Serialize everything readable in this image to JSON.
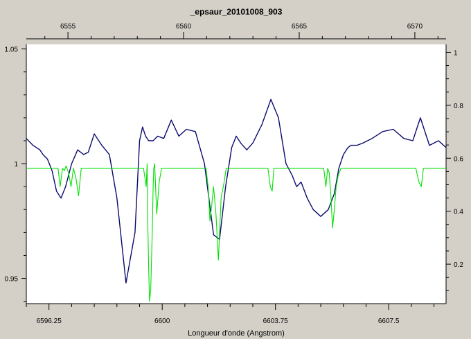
{
  "chart_data": {
    "type": "line",
    "title": "_epsaur_20101008_903",
    "xlabel": "Longueur d'onde (Angstrom)",
    "colors": {
      "background": "#d4d0c8",
      "plot_bg": "#ffffff",
      "observed": "#0a0a6e",
      "telluric": "#00e000"
    },
    "x_bottom": {
      "range": [
        6595.5,
        6609.4
      ],
      "ticks": [
        6596.25,
        6600,
        6603.75,
        6607.5
      ],
      "tick_labels": [
        "6596.25",
        "6600",
        "6603.75",
        "6607.5"
      ]
    },
    "x_top": {
      "range": [
        6553.2,
        6571.35
      ],
      "ticks": [
        6555,
        6560,
        6565,
        6570
      ],
      "tick_labels": [
        "6555",
        "6560",
        "6565",
        "6570"
      ]
    },
    "y_left": {
      "range": [
        0.939,
        1.052
      ],
      "ticks": [
        0.95,
        1,
        1.05
      ],
      "tick_labels": [
        "0.95",
        "1",
        "1.05"
      ]
    },
    "y_right": {
      "range": [
        0.051,
        1.03
      ],
      "ticks": [
        0.2,
        0.4,
        0.6,
        0.8,
        1
      ],
      "tick_labels": [
        "0.2",
        "0.4",
        "0.6",
        "0.8",
        "1"
      ]
    },
    "grid": false,
    "series": [
      {
        "axis": "left",
        "x": [
          6595.5,
          6595.72,
          6595.95,
          6596.05,
          6596.2,
          6596.35,
          6596.5,
          6596.65,
          6596.8,
          6597.0,
          6597.2,
          6597.4,
          6597.55,
          6597.75,
          6598.0,
          6598.25,
          6598.5,
          6598.8,
          6599.1,
          6599.25,
          6599.35,
          6599.45,
          6599.55,
          6599.7,
          6599.85,
          6600.05,
          6600.3,
          6600.55,
          6600.8,
          6601.1,
          6601.4,
          6601.7,
          6601.9,
          6602.1,
          6602.3,
          6602.45,
          6602.6,
          6602.8,
          6603.0,
          6603.3,
          6603.6,
          6603.85,
          6604.1,
          6604.3,
          6604.45,
          6604.6,
          6604.8,
          6605.0,
          6605.25,
          6605.5,
          6605.7,
          6605.85,
          6606.0,
          6606.15,
          6606.25,
          6606.45,
          6606.65,
          6606.95,
          6607.3,
          6607.65,
          6608.0,
          6608.3,
          6608.55,
          6608.85,
          6609.15,
          6609.4
        ],
        "y": [
          1.011,
          1.008,
          1.006,
          1.004,
          1.002,
          0.997,
          0.988,
          0.985,
          0.99,
          1.0,
          1.006,
          1.004,
          1.005,
          1.013,
          1.008,
          1.004,
          0.985,
          0.948,
          0.97,
          1.01,
          1.016,
          1.012,
          1.01,
          1.01,
          1.012,
          1.011,
          1.019,
          1.012,
          1.015,
          1.014,
          1.0,
          0.969,
          0.967,
          0.99,
          1.007,
          1.012,
          1.009,
          1.006,
          1.009,
          1.017,
          1.028,
          1.02,
          1.0,
          0.995,
          0.99,
          0.992,
          0.985,
          0.98,
          0.977,
          0.98,
          0.987,
          0.998,
          1.004,
          1.007,
          1.008,
          1.008,
          1.009,
          1.011,
          1.014,
          1.015,
          1.011,
          1.01,
          1.02,
          1.008,
          1.01,
          1.007
        ]
      },
      {
        "axis": "left",
        "x": [
          6595.5,
          6596.55,
          6596.62,
          6596.7,
          6596.76,
          6596.82,
          6596.9,
          6596.98,
          6597.06,
          6597.14,
          6597.23,
          6597.32,
          6599.38,
          6599.47,
          6599.5,
          6599.52,
          6599.55,
          6599.58,
          6599.62,
          6599.67,
          6599.7,
          6599.72,
          6599.75,
          6599.78,
          6599.82,
          6599.9,
          6599.98,
          6600.05,
          6601.45,
          6601.52,
          6601.58,
          6601.64,
          6601.7,
          6601.78,
          6601.86,
          6601.95,
          6602.05,
          6602.12,
          6603.5,
          6603.58,
          6603.64,
          6603.7,
          6603.78,
          6605.35,
          6605.42,
          6605.48,
          6605.53,
          6605.59,
          6605.64,
          6605.7,
          6605.76,
          6605.83,
          6605.92,
          6608.4,
          6608.5,
          6608.58,
          6608.65,
          6608.75,
          6609.4
        ],
        "y": [
          0.998,
          0.998,
          0.99,
          0.998,
          0.997,
          0.999,
          0.996,
          0.99,
          0.998,
          0.994,
          0.986,
          0.998,
          0.998,
          0.99,
          1.0,
          0.975,
          0.955,
          0.94,
          0.945,
          0.97,
          0.99,
          0.998,
          1.0,
          0.99,
          0.978,
          0.992,
          0.998,
          0.998,
          0.998,
          0.99,
          0.975,
          0.982,
          0.99,
          0.978,
          0.958,
          0.985,
          0.992,
          0.998,
          0.998,
          0.99,
          0.988,
          0.998,
          0.998,
          0.998,
          0.99,
          0.998,
          0.996,
          0.985,
          0.972,
          0.98,
          0.99,
          0.995,
          0.998,
          0.998,
          0.992,
          0.99,
          0.998,
          0.998,
          0.998
        ]
      }
    ]
  }
}
